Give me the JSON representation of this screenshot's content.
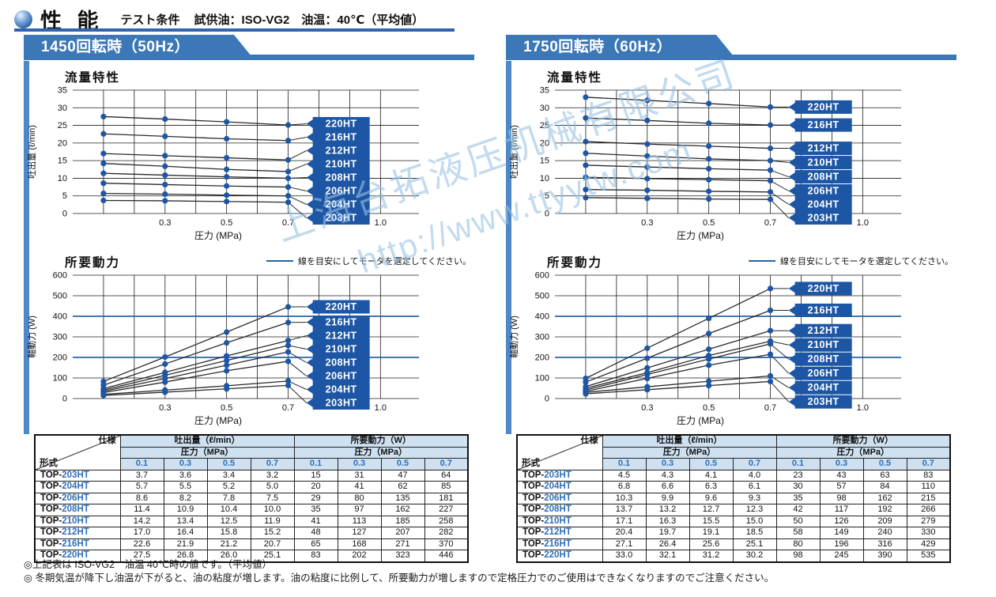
{
  "page": {
    "title": "性 能",
    "test_label": "テスト条件",
    "test_conditions": "試供油：ISO-VG2　油温：40℃（平均値）",
    "watermark": {
      "line1": "上海台拓液压机械有限公司",
      "line2": "http://www.ttyytw.com"
    },
    "notes": [
      "◎上記表は ISO-VG2　油温 40℃時の値です。（平均値）",
      "◎ 冬期気温が降下し油温が下がると、油の粘度が増します。油の粘度に比例して、所要動力が増しますので定格圧力でのご使用はできなくなりますのでご注意ください。"
    ]
  },
  "colors": {
    "banner": "#3c78b8",
    "edge_bar": "#4f88c6",
    "label_box": "#1d56a5",
    "marker": "#1d56a5",
    "guide_line": "#2a62ad",
    "line": "#2a2a2a",
    "header_bg": "#cfe1f1",
    "accent_text": "#2f6fb8",
    "watermark": "#98c2e4"
  },
  "chart_data": [
    {
      "panel": "1450回転時（50Hz）",
      "type": "line",
      "title": "流量特性",
      "xlabel": "圧力 (MPa)",
      "ylabel": "吐出量 (ℓ/min)",
      "x": [
        0.1,
        0.3,
        0.5,
        0.7
      ],
      "xlim": [
        0,
        1.0
      ],
      "xticks": [
        0.3,
        0.5,
        0.7,
        1.0
      ],
      "ylim": [
        0,
        35
      ],
      "ytick_step": 5,
      "guide_lines": [],
      "series": [
        {
          "name": "220HT",
          "values": [
            27.5,
            26.8,
            26.0,
            25.1
          ]
        },
        {
          "name": "216HT",
          "values": [
            22.6,
            21.9,
            21.2,
            20.7
          ]
        },
        {
          "name": "212HT",
          "values": [
            17.0,
            16.4,
            15.8,
            15.2
          ]
        },
        {
          "name": "210HT",
          "values": [
            14.2,
            13.4,
            12.5,
            11.9
          ]
        },
        {
          "name": "208HT",
          "values": [
            11.4,
            10.9,
            10.4,
            10.0
          ]
        },
        {
          "name": "206HT",
          "values": [
            8.6,
            8.2,
            7.8,
            7.5
          ]
        },
        {
          "name": "204HT",
          "values": [
            5.7,
            5.5,
            5.2,
            5.0
          ]
        },
        {
          "name": "203HT",
          "values": [
            3.7,
            3.6,
            3.4,
            3.2
          ]
        }
      ]
    },
    {
      "panel": "1450回転時（50Hz）",
      "type": "line",
      "title": "所要動力",
      "legend": "線を目安にしてモータを選定してください。",
      "xlabel": "圧力 (MPa)",
      "ylabel": "軸動力 (W)",
      "x": [
        0.1,
        0.3,
        0.5,
        0.7
      ],
      "xlim": [
        0,
        1.0
      ],
      "xticks": [
        0.3,
        0.5,
        0.7,
        1.0
      ],
      "ylim": [
        0,
        600
      ],
      "ytick_step": 100,
      "guide_lines": [
        400,
        200
      ],
      "series": [
        {
          "name": "220HT",
          "values": [
            83,
            202,
            323,
            446
          ]
        },
        {
          "name": "216HT",
          "values": [
            65,
            168,
            271,
            370
          ]
        },
        {
          "name": "212HT",
          "values": [
            48,
            127,
            207,
            282
          ]
        },
        {
          "name": "210HT",
          "values": [
            41,
            113,
            185,
            258
          ]
        },
        {
          "name": "208HT",
          "values": [
            35,
            97,
            162,
            227
          ]
        },
        {
          "name": "206HT",
          "values": [
            29,
            80,
            135,
            181
          ]
        },
        {
          "name": "204HT",
          "values": [
            20,
            41,
            62,
            85
          ]
        },
        {
          "name": "203HT",
          "values": [
            15,
            31,
            47,
            64
          ]
        }
      ]
    },
    {
      "panel": "1750回転時（60Hz）",
      "type": "line",
      "title": "流量特性",
      "xlabel": "圧力 (MPa)",
      "ylabel": "吐出量 (ℓ/min)",
      "x": [
        0.1,
        0.3,
        0.5,
        0.7
      ],
      "xlim": [
        0,
        1.0
      ],
      "xticks": [
        0.3,
        0.5,
        0.7,
        1.0
      ],
      "ylim": [
        0,
        35
      ],
      "ytick_step": 5,
      "guide_lines": [],
      "series": [
        {
          "name": "220HT",
          "values": [
            33.0,
            32.1,
            31.2,
            30.2
          ]
        },
        {
          "name": "216HT",
          "values": [
            27.1,
            26.4,
            25.6,
            25.1
          ]
        },
        {
          "name": "212HT",
          "values": [
            20.4,
            19.7,
            19.1,
            18.5
          ]
        },
        {
          "name": "210HT",
          "values": [
            17.1,
            16.3,
            15.5,
            15.0
          ]
        },
        {
          "name": "208HT",
          "values": [
            13.7,
            13.2,
            12.7,
            12.3
          ]
        },
        {
          "name": "206HT",
          "values": [
            10.3,
            9.9,
            9.6,
            9.3
          ]
        },
        {
          "name": "204HT",
          "values": [
            6.8,
            6.6,
            6.3,
            6.1
          ]
        },
        {
          "name": "203HT",
          "values": [
            4.5,
            4.3,
            4.1,
            4.0
          ]
        }
      ]
    },
    {
      "panel": "1750回転時（60Hz）",
      "type": "line",
      "title": "所要動力",
      "legend": "線を目安にしてモータを選定してください。",
      "xlabel": "圧力 (MPa)",
      "ylabel": "軸動力 (W)",
      "x": [
        0.1,
        0.3,
        0.5,
        0.7
      ],
      "xlim": [
        0,
        1.0
      ],
      "xticks": [
        0.3,
        0.5,
        0.7,
        1.0
      ],
      "ylim": [
        0,
        600
      ],
      "ytick_step": 100,
      "guide_lines": [
        400,
        200
      ],
      "series": [
        {
          "name": "220HT",
          "values": [
            98,
            245,
            390,
            535
          ]
        },
        {
          "name": "216HT",
          "values": [
            80,
            196,
            316,
            429
          ]
        },
        {
          "name": "212HT",
          "values": [
            58,
            149,
            240,
            330
          ]
        },
        {
          "name": "210HT",
          "values": [
            50,
            126,
            209,
            279
          ]
        },
        {
          "name": "208HT",
          "values": [
            42,
            117,
            192,
            266
          ]
        },
        {
          "name": "206HT",
          "values": [
            35,
            98,
            162,
            215
          ]
        },
        {
          "name": "204HT",
          "values": [
            30,
            57,
            84,
            110
          ]
        },
        {
          "name": "203HT",
          "values": [
            23,
            43,
            63,
            83
          ]
        }
      ]
    }
  ],
  "panels": [
    {
      "banner_label": "1450回転時（50Hz）",
      "table": {
        "corner_top": "仕様",
        "corner_bottom": "形式",
        "group_headers": [
          "吐出量（ℓ/min）",
          "所要動力（W）"
        ],
        "sub_header": "圧力（MPa）",
        "pressure_cols": [
          "0.1",
          "0.3",
          "0.5",
          "0.7"
        ],
        "rows": [
          {
            "model_prefix": "TOP-",
            "model": "203HT",
            "flow": [
              "3.7",
              "3.6",
              "3.4",
              "3.2"
            ],
            "power": [
              "15",
              "31",
              "47",
              "64"
            ]
          },
          {
            "model_prefix": "TOP-",
            "model": "204HT",
            "flow": [
              "5.7",
              "5.5",
              "5.2",
              "5.0"
            ],
            "power": [
              "20",
              "41",
              "62",
              "85"
            ]
          },
          {
            "model_prefix": "TOP-",
            "model": "206HT",
            "flow": [
              "8.6",
              "8.2",
              "7.8",
              "7.5"
            ],
            "power": [
              "29",
              "80",
              "135",
              "181"
            ]
          },
          {
            "model_prefix": "TOP-",
            "model": "208HT",
            "flow": [
              "11.4",
              "10.9",
              "10.4",
              "10.0"
            ],
            "power": [
              "35",
              "97",
              "162",
              "227"
            ]
          },
          {
            "model_prefix": "TOP-",
            "model": "210HT",
            "flow": [
              "14.2",
              "13.4",
              "12.5",
              "11.9"
            ],
            "power": [
              "41",
              "113",
              "185",
              "258"
            ]
          },
          {
            "model_prefix": "TOP-",
            "model": "212HT",
            "flow": [
              "17.0",
              "16.4",
              "15.8",
              "15.2"
            ],
            "power": [
              "48",
              "127",
              "207",
              "282"
            ]
          },
          {
            "model_prefix": "TOP-",
            "model": "216HT",
            "flow": [
              "22.6",
              "21.9",
              "21.2",
              "20.7"
            ],
            "power": [
              "65",
              "168",
              "271",
              "370"
            ]
          },
          {
            "model_prefix": "TOP-",
            "model": "220HT",
            "flow": [
              "27.5",
              "26.8",
              "26.0",
              "25.1"
            ],
            "power": [
              "83",
              "202",
              "323",
              "446"
            ]
          }
        ]
      }
    },
    {
      "banner_label": "1750回転時（60Hz）",
      "table": {
        "corner_top": "仕様",
        "corner_bottom": "形式",
        "group_headers": [
          "吐出量（ℓ/min）",
          "所要動力（W）"
        ],
        "sub_header": "圧力（MPa）",
        "pressure_cols": [
          "0.1",
          "0.3",
          "0.5",
          "0.7"
        ],
        "rows": [
          {
            "model_prefix": "TOP-",
            "model": "203HT",
            "flow": [
              "4.5",
              "4.3",
              "4.1",
              "4.0"
            ],
            "power": [
              "23",
              "43",
              "63",
              "83"
            ]
          },
          {
            "model_prefix": "TOP-",
            "model": "204HT",
            "flow": [
              "6.8",
              "6.6",
              "6.3",
              "6.1"
            ],
            "power": [
              "30",
              "57",
              "84",
              "110"
            ]
          },
          {
            "model_prefix": "TOP-",
            "model": "206HT",
            "flow": [
              "10.3",
              "9.9",
              "9.6",
              "9.3"
            ],
            "power": [
              "35",
              "98",
              "162",
              "215"
            ]
          },
          {
            "model_prefix": "TOP-",
            "model": "208HT",
            "flow": [
              "13.7",
              "13.2",
              "12.7",
              "12.3"
            ],
            "power": [
              "42",
              "117",
              "192",
              "266"
            ]
          },
          {
            "model_prefix": "TOP-",
            "model": "210HT",
            "flow": [
              "17.1",
              "16.3",
              "15.5",
              "15.0"
            ],
            "power": [
              "50",
              "126",
              "209",
              "279"
            ]
          },
          {
            "model_prefix": "TOP-",
            "model": "212HT",
            "flow": [
              "20.4",
              "19.7",
              "19.1",
              "18.5"
            ],
            "power": [
              "58",
              "149",
              "240",
              "330"
            ]
          },
          {
            "model_prefix": "TOP-",
            "model": "216HT",
            "flow": [
              "27.1",
              "26.4",
              "25.6",
              "25.1"
            ],
            "power": [
              "80",
              "196",
              "316",
              "429"
            ]
          },
          {
            "model_prefix": "TOP-",
            "model": "220HT",
            "flow": [
              "33.0",
              "32.1",
              "31.2",
              "30.2"
            ],
            "power": [
              "98",
              "245",
              "390",
              "535"
            ]
          }
        ]
      }
    }
  ]
}
